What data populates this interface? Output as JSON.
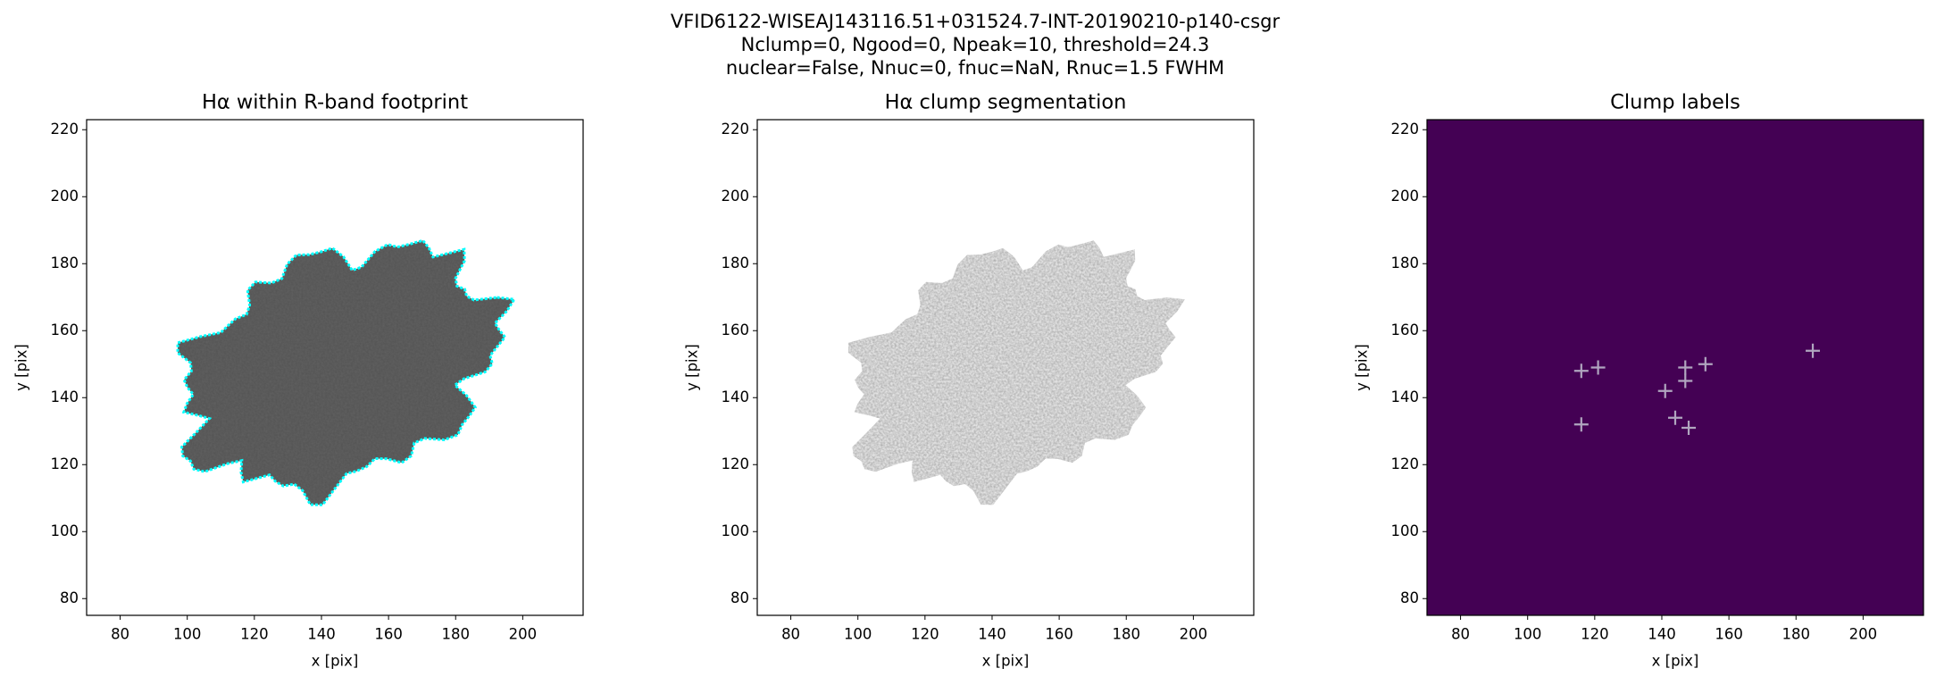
{
  "suptitle": [
    "VFID6122-WISEAJ143116.51+031524.7-INT-20190210-p140-csgr",
    "Nclump=0, Ngood=0, Npeak=10, threshold=24.3",
    "nuclear=False, Nnuc=0, fnuc=NaN, Rnuc=1.5 FWHM"
  ],
  "chart_data": [
    {
      "type": "image",
      "title": "Hα within R-band footprint",
      "xlabel": "x [pix]",
      "ylabel": "y [pix]",
      "xlim": [
        70,
        218
      ],
      "ylim": [
        75,
        223
      ],
      "xticks": [
        80,
        100,
        120,
        140,
        160,
        180,
        200
      ],
      "yticks": [
        80,
        100,
        120,
        140,
        160,
        180,
        200,
        220
      ],
      "cmap": "dark",
      "contour_color": "cyan"
    },
    {
      "type": "image",
      "title": "Hα clump segmentation",
      "xlabel": "x [pix]",
      "ylabel": "y [pix]",
      "xlim": [
        70,
        218
      ],
      "ylim": [
        75,
        223
      ],
      "xticks": [
        80,
        100,
        120,
        140,
        160,
        180,
        200
      ],
      "yticks": [
        80,
        100,
        120,
        140,
        160,
        180,
        200,
        220
      ],
      "cmap": "light"
    },
    {
      "type": "scatter",
      "title": "Clump labels",
      "xlabel": "x [pix]",
      "ylabel": "y [pix]",
      "xlim": [
        70,
        218
      ],
      "ylim": [
        75,
        223
      ],
      "xticks": [
        80,
        100,
        120,
        140,
        160,
        180,
        200
      ],
      "yticks": [
        80,
        100,
        120,
        140,
        160,
        180,
        200,
        220
      ],
      "background": "#440154",
      "color": "#b0a6bf",
      "x": [
        116,
        121,
        116,
        141,
        144,
        147,
        147,
        148,
        153,
        185
      ],
      "y": [
        148,
        149,
        132,
        142,
        134,
        149,
        145,
        131,
        150,
        154
      ]
    }
  ]
}
